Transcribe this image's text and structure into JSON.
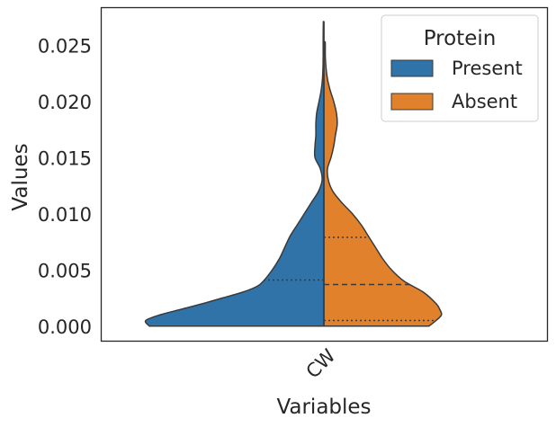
{
  "chart_data": {
    "type": "violin",
    "split": true,
    "xlabel": "Variables",
    "ylabel": "Values",
    "categories": [
      "CW"
    ],
    "ylim": [
      -0.0013,
      0.0283
    ],
    "yticks": [
      0.0,
      0.005,
      0.01,
      0.015,
      0.02,
      0.025
    ],
    "ytick_labels": [
      "0.000",
      "0.005",
      "0.010",
      "0.015",
      "0.020",
      "0.025"
    ],
    "legend": {
      "title": "Protein",
      "position": "upper right"
    },
    "series": [
      {
        "name": "Present",
        "color": "#2f73a8",
        "side": "left",
        "quartiles": [
          0.0,
          0.0,
          0.0041
        ],
        "profile": [
          [
            0.0,
            0.98
          ],
          [
            0.0005,
            1.0
          ],
          [
            0.001,
            0.92
          ],
          [
            0.0015,
            0.8
          ],
          [
            0.002,
            0.68
          ],
          [
            0.0025,
            0.57
          ],
          [
            0.003,
            0.46
          ],
          [
            0.0035,
            0.38
          ],
          [
            0.004,
            0.34
          ],
          [
            0.005,
            0.29
          ],
          [
            0.006,
            0.25
          ],
          [
            0.007,
            0.22
          ],
          [
            0.008,
            0.19
          ],
          [
            0.009,
            0.15
          ],
          [
            0.01,
            0.11
          ],
          [
            0.011,
            0.07
          ],
          [
            0.012,
            0.03
          ],
          [
            0.013,
            0.01
          ],
          [
            0.014,
            0.02
          ],
          [
            0.015,
            0.05
          ],
          [
            0.016,
            0.05
          ],
          [
            0.017,
            0.045
          ],
          [
            0.018,
            0.045
          ],
          [
            0.019,
            0.04
          ],
          [
            0.02,
            0.027
          ],
          [
            0.021,
            0.015
          ],
          [
            0.022,
            0.008
          ],
          [
            0.023,
            0.005
          ],
          [
            0.024,
            0.004
          ],
          [
            0.025,
            0.004
          ],
          [
            0.026,
            0.004
          ],
          [
            0.0271,
            0.003
          ]
        ]
      },
      {
        "name": "Absent",
        "color": "#e1812c",
        "side": "right",
        "quartiles": [
          0.0005,
          0.0037,
          0.0079
        ],
        "profile": [
          [
            0.0,
            0.59
          ],
          [
            0.0005,
            0.63
          ],
          [
            0.001,
            0.66
          ],
          [
            0.0015,
            0.65
          ],
          [
            0.002,
            0.63
          ],
          [
            0.003,
            0.56
          ],
          [
            0.004,
            0.45
          ],
          [
            0.005,
            0.38
          ],
          [
            0.006,
            0.33
          ],
          [
            0.007,
            0.29
          ],
          [
            0.008,
            0.25
          ],
          [
            0.009,
            0.21
          ],
          [
            0.01,
            0.16
          ],
          [
            0.011,
            0.1
          ],
          [
            0.012,
            0.05
          ],
          [
            0.013,
            0.025
          ],
          [
            0.014,
            0.02
          ],
          [
            0.015,
            0.04
          ],
          [
            0.016,
            0.055
          ],
          [
            0.017,
            0.065
          ],
          [
            0.018,
            0.075
          ],
          [
            0.019,
            0.07
          ],
          [
            0.02,
            0.055
          ],
          [
            0.021,
            0.035
          ],
          [
            0.022,
            0.02
          ],
          [
            0.023,
            0.012
          ],
          [
            0.024,
            0.008
          ],
          [
            0.025,
            0.008
          ],
          [
            0.0253,
            0.007
          ]
        ]
      }
    ]
  }
}
